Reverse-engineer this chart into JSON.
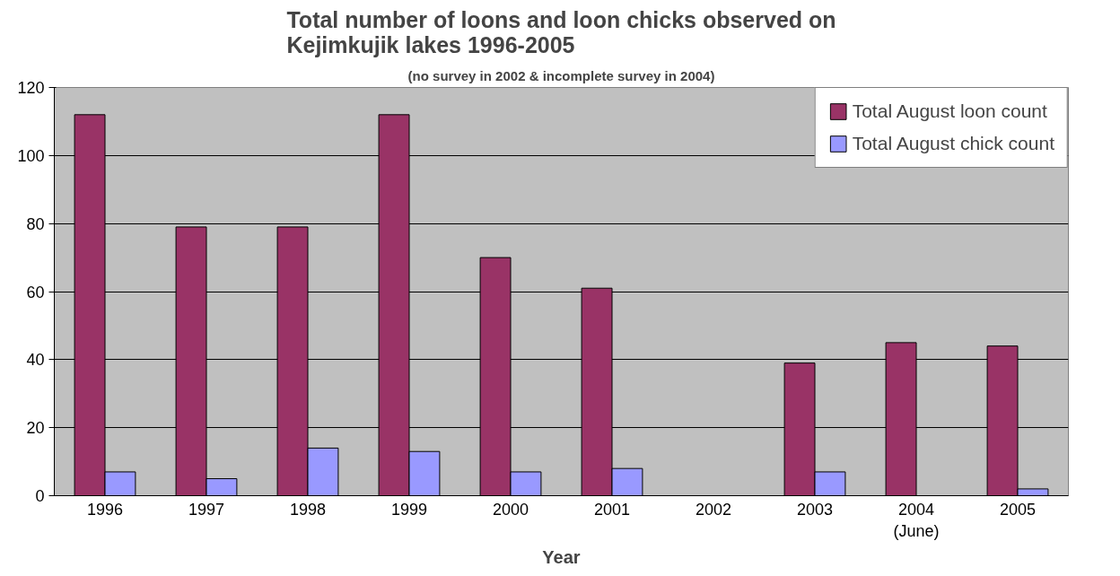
{
  "chart_data": {
    "type": "bar",
    "title": "Total number of loons and loon chicks observed on\nKejimkujik lakes 1996-2005",
    "subtitle": "(no survey in 2002 & incomplete survey in 2004)",
    "xlabel": "Year",
    "categories": [
      "1996",
      "1997",
      "1998",
      "1999",
      "2000",
      "2001",
      "2002",
      "2003",
      "2004\n(June)",
      "2005"
    ],
    "series": [
      {
        "name": "Total August loon count",
        "color": "#993366",
        "values": [
          112,
          79,
          79,
          112,
          70,
          61,
          null,
          39,
          45,
          44
        ]
      },
      {
        "name": "Total August chick count",
        "color": "#9999ff",
        "values": [
          7,
          5,
          14,
          13,
          7,
          8,
          null,
          7,
          null,
          2
        ]
      }
    ],
    "ylim": [
      0,
      120
    ],
    "yticks": [
      0,
      20,
      40,
      60,
      80,
      100,
      120
    ],
    "grid": "y",
    "legend": "top right"
  }
}
